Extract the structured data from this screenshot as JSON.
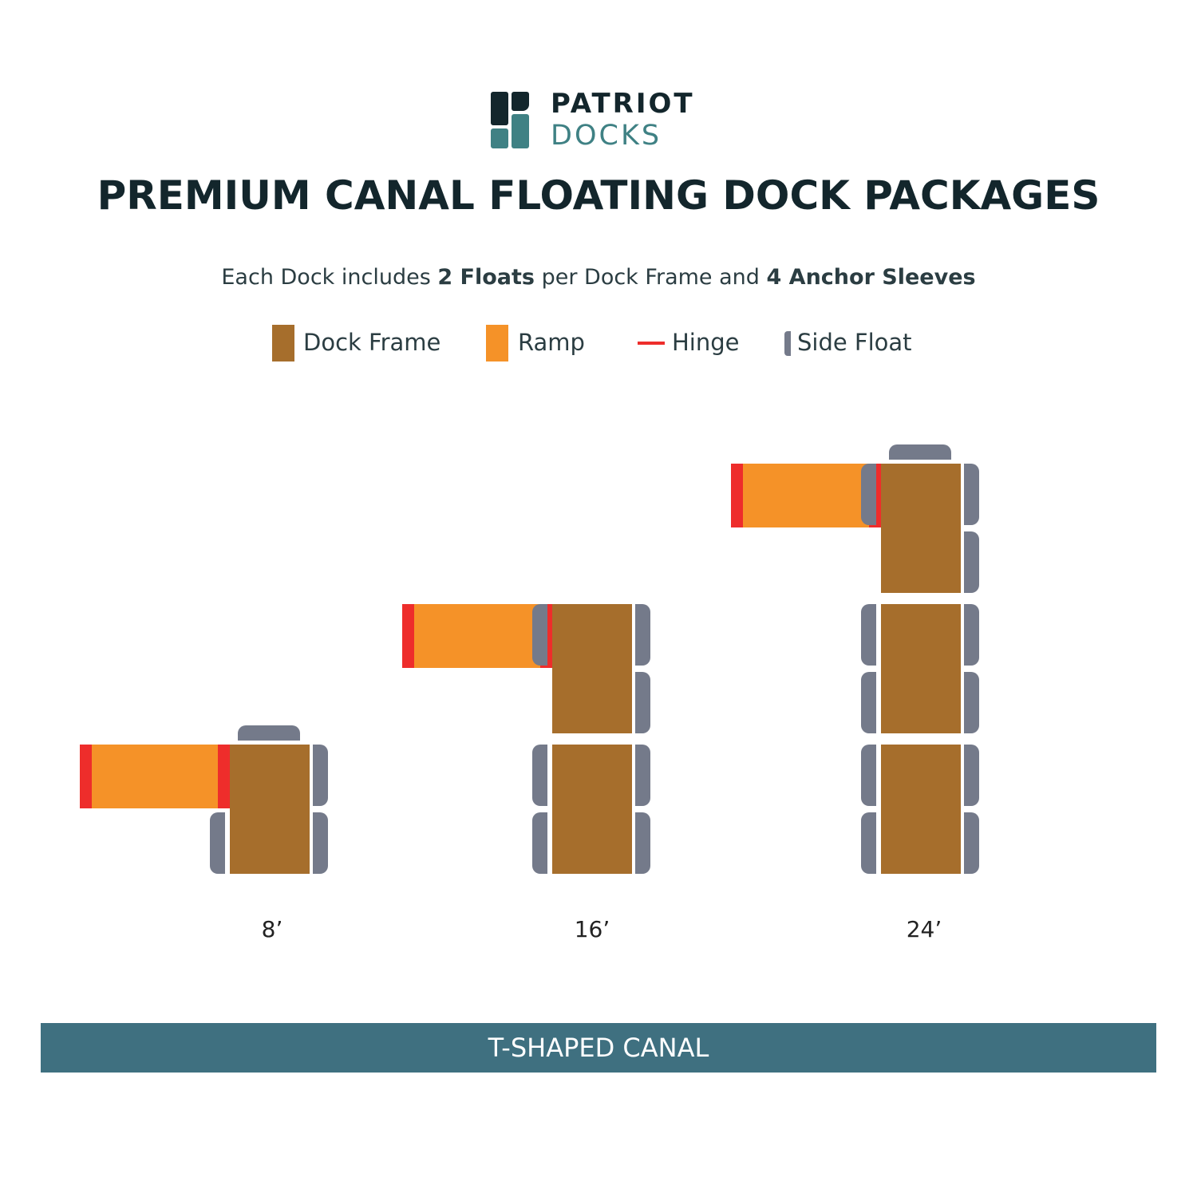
{
  "logo": {
    "line1": "PATRIOT",
    "line2": "DOCKS"
  },
  "title": "PREMIUM CANAL FLOATING DOCK PACKAGES",
  "subtitle": {
    "part1": "Each Dock includes ",
    "bold1": "2 Floats",
    "part2": " per Dock Frame and ",
    "bold2": "4 Anchor Sleeves"
  },
  "legend": [
    {
      "label": "Dock Frame",
      "color": "#a66e2c"
    },
    {
      "label": "Ramp",
      "color": "#f59228"
    },
    {
      "label": "Hinge",
      "color": "#ee2d2b"
    },
    {
      "label": "Side Float",
      "color": "#747a8a"
    }
  ],
  "docks": [
    {
      "size": "8’",
      "frames": 1
    },
    {
      "size": "16’",
      "frames": 2
    },
    {
      "size": "24’",
      "frames": 3
    }
  ],
  "colors": {
    "dark": "#13262c",
    "teal": "#3f8184",
    "frame": "#a66e2c",
    "ramp": "#f59228",
    "hinge": "#ee2d2b",
    "float": "#747a8a",
    "banner": "#3f7080"
  },
  "banner": "T-SHAPED CANAL"
}
